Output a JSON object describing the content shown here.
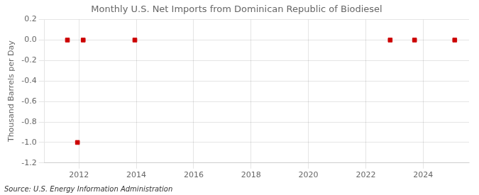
{
  "chart_data": {
    "type": "scatter",
    "title": "Monthly U.S. Net Imports from Dominican Republic of Biodiesel",
    "ylabel": "Thousand Barrels per Day",
    "annotations": [
      "Source: U.S. Energy Information Administration"
    ],
    "x": [
      2011.6,
      2011.95,
      2012.15,
      2013.95,
      2022.85,
      2023.7,
      2025.1
    ],
    "values": [
      0.0,
      -1.0,
      0.0,
      0.0,
      0.0,
      0.0,
      0.0
    ],
    "color": "#cc0000",
    "marker": "square",
    "xlim": [
      2010.8,
      2025.6
    ],
    "xticks": [
      2012,
      2014,
      2016,
      2018,
      2020,
      2022,
      2024
    ],
    "ylim": [
      -1.2,
      0.2
    ],
    "yticks": [
      0.2,
      {
        "value": 0.0,
        "label": "0.0"
      },
      -0.2,
      -0.4,
      -0.6,
      -0.8,
      {
        "value": -1.0,
        "label": "-1.0"
      },
      -1.2
    ],
    "grid": true
  }
}
